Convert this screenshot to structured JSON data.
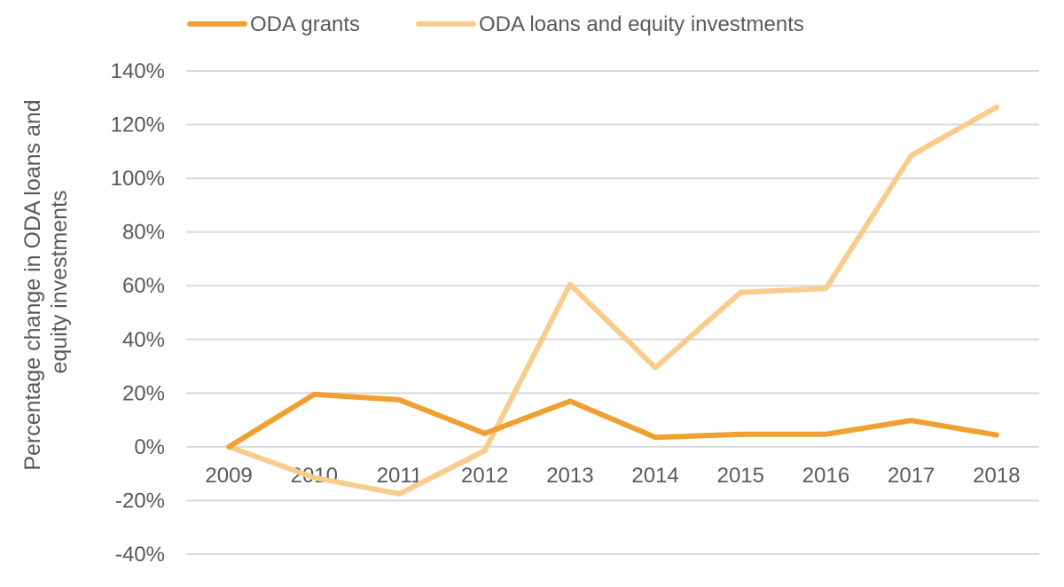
{
  "chart_data": {
    "type": "line",
    "categories": [
      "2009",
      "2010",
      "2011",
      "2012",
      "2013",
      "2014",
      "2015",
      "2016",
      "2017",
      "2018"
    ],
    "series": [
      {
        "name": "ODA grants",
        "color": "#f0a030",
        "values": [
          0,
          19.5,
          17.5,
          5,
          17,
          3.5,
          4.7,
          4.7,
          9.8,
          4.4
        ]
      },
      {
        "name": "ODA loans and equity investments",
        "color": "#f8cc8c",
        "values": [
          0,
          -11.5,
          -17.5,
          -1.5,
          60.5,
          29.5,
          57.5,
          59,
          108.5,
          126.5
        ]
      }
    ],
    "y_ticks": [
      "140%",
      "120%",
      "100%",
      "80%",
      "60%",
      "40%",
      "20%",
      "0%",
      "-20%",
      "-40%"
    ],
    "ylim": [
      -40,
      140
    ],
    "ylabel_lines": [
      "Percentage change in ODA loans and",
      "equity investments"
    ],
    "xlabel": "",
    "grid": true,
    "legend_position": "top"
  }
}
